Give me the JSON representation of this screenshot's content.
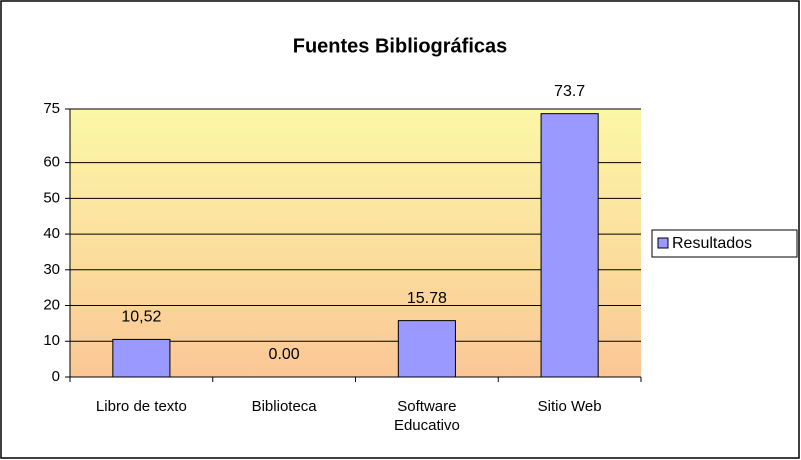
{
  "chart_data": {
    "type": "bar",
    "title": "Fuentes Bibliográficas",
    "categories": [
      "Libro de texto",
      "Biblioteca",
      "Software Educativo",
      "Sitio Web"
    ],
    "series": [
      {
        "name": "Resultados",
        "color": "#9999ff",
        "values": [
          10.52,
          0,
          15.78,
          73.7
        ],
        "value_labels": [
          "10,52",
          "0.00",
          "15.78",
          "73.7"
        ]
      }
    ],
    "ylim": [
      0,
      75
    ],
    "yticks": [
      0,
      10,
      20,
      30,
      40,
      50,
      60,
      75
    ],
    "grid": true,
    "legend": "right"
  }
}
